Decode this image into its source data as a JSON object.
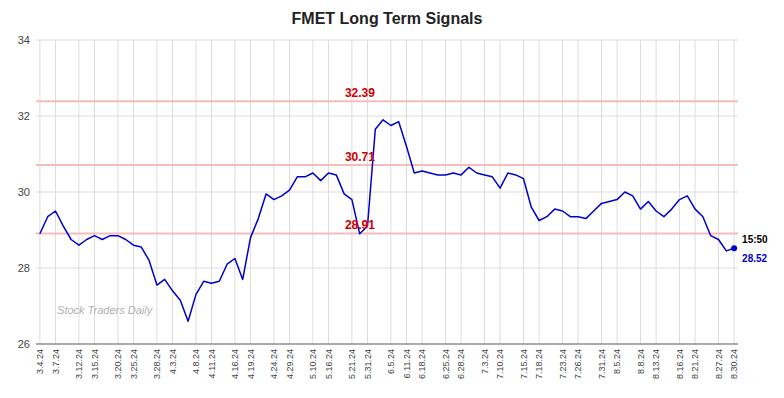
{
  "chart_data": {
    "type": "line",
    "title": "FMET Long Term Signals",
    "categories": [
      "3.4.24",
      null,
      "3.7.24",
      null,
      null,
      "3.12.24",
      null,
      "3.15.24",
      null,
      null,
      "3.20.24",
      null,
      "3.25.24",
      null,
      null,
      "3.28.24",
      null,
      "4.3.24",
      null,
      null,
      "4.8.24",
      null,
      "4.11.24",
      null,
      null,
      "4.16.24",
      null,
      "4.19.24",
      null,
      null,
      "4.24.24",
      null,
      "4.29.24",
      null,
      null,
      "5.10.24",
      null,
      "5.16.24",
      null,
      null,
      "5.21.24",
      null,
      "5.31.24",
      null,
      null,
      "6.5.24",
      null,
      "6.11.24",
      null,
      "6.18.24",
      null,
      null,
      "6.25.24",
      null,
      "6.28.24",
      null,
      null,
      "7.3.24",
      null,
      "7.10.24",
      null,
      null,
      "7.15.24",
      null,
      "7.18.24",
      null,
      null,
      "7.23.24",
      null,
      "7.26.24",
      null,
      null,
      "7.31.24",
      null,
      "8.5.24",
      null,
      null,
      "8.8.24",
      null,
      "8.13.24",
      null,
      null,
      "8.16.24",
      null,
      "8.21.24",
      null,
      null,
      "8.27.24",
      null,
      "8.30.24"
    ],
    "values": [
      28.9,
      29.35,
      29.5,
      29.1,
      28.75,
      28.6,
      28.75,
      28.85,
      28.75,
      28.85,
      28.85,
      28.75,
      28.6,
      28.55,
      28.2,
      27.55,
      27.7,
      27.4,
      27.15,
      26.6,
      27.3,
      27.65,
      27.6,
      27.65,
      28.1,
      28.25,
      27.7,
      28.8,
      29.3,
      29.95,
      29.8,
      29.9,
      30.05,
      30.4,
      30.4,
      30.5,
      30.3,
      30.5,
      30.45,
      29.95,
      29.8,
      28.9,
      29.1,
      31.65,
      31.9,
      31.75,
      31.85,
      31.2,
      30.5,
      30.55,
      30.5,
      30.45,
      30.45,
      30.5,
      30.45,
      30.65,
      30.5,
      30.45,
      30.4,
      30.1,
      30.5,
      30.45,
      30.35,
      29.6,
      29.25,
      29.35,
      29.55,
      29.5,
      29.35,
      29.35,
      29.3,
      29.5,
      29.7,
      29.75,
      29.8,
      30.0,
      29.9,
      29.55,
      29.75,
      29.5,
      29.35,
      29.55,
      29.8,
      29.9,
      29.55,
      29.35,
      28.85,
      28.75,
      28.45,
      28.52
    ],
    "color": "#0000cc",
    "ylim": [
      26,
      34
    ],
    "yticks": [
      26,
      28,
      30,
      32,
      34
    ],
    "grid": true,
    "reference_lines": [
      {
        "value": 32.39,
        "label": "32.39",
        "color": "#f5bcbc",
        "label_color": "#cc0000"
      },
      {
        "value": 30.71,
        "label": "30.71",
        "color": "#f5bcbc",
        "label_color": "#cc0000"
      },
      {
        "value": 28.91,
        "label": "28.91",
        "color": "#f5bcbc",
        "label_color": "#cc0000"
      }
    ],
    "annotations": [
      {
        "text": "15:50"
      },
      {
        "text": "28.52",
        "value": 28.52,
        "color": "#0000cc"
      }
    ],
    "watermark": "Stock Traders Daily"
  }
}
